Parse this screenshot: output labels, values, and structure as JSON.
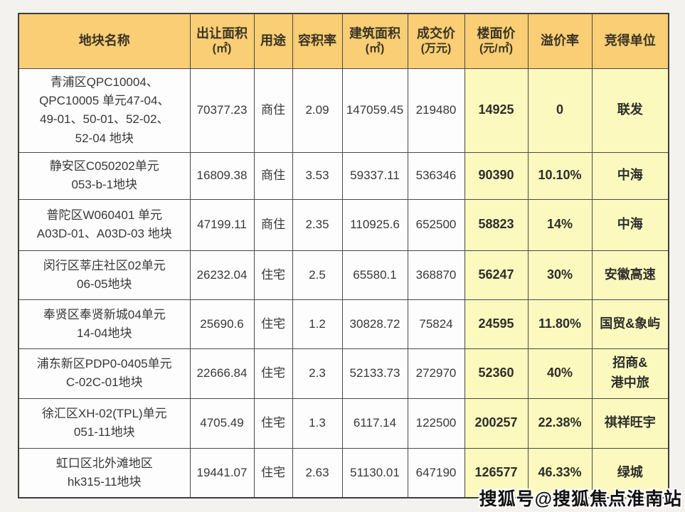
{
  "watermark": "搜狐号@搜狐焦点淮南站",
  "colors": {
    "header_bg": "#f9ce74",
    "highlight_bg": "#fbf9bd",
    "cell_bg": "#fdfdfd",
    "border": "#4a4a4a",
    "page_bg": "#f3f2ee"
  },
  "table": {
    "columns": [
      {
        "title": "地块名称",
        "unit": ""
      },
      {
        "title": "出让面积",
        "unit": "(㎡)"
      },
      {
        "title": "用途",
        "unit": ""
      },
      {
        "title": "容积率",
        "unit": ""
      },
      {
        "title": "建筑面积",
        "unit": "(㎡)"
      },
      {
        "title": "成交价",
        "unit": "(万元)"
      },
      {
        "title": "楼面价",
        "unit": "(元/㎡)"
      },
      {
        "title": "溢价率",
        "unit": ""
      },
      {
        "title": "竞得单位",
        "unit": ""
      }
    ],
    "rows": [
      {
        "name": "青浦区QPC10004、\nQPC10005 单元47-04、\n49-01、50-01、52-02、\n52-04 地块",
        "area": "70377.23",
        "use": "商住",
        "far": "2.09",
        "built_area": "147059.45",
        "price": "219480",
        "floor_price": "14925",
        "premium": "0",
        "winner": "联发"
      },
      {
        "name": "静安区C050202单元\n053-b-1地块",
        "area": "16809.38",
        "use": "商住",
        "far": "3.53",
        "built_area": "59337.11",
        "price": "536346",
        "floor_price": "90390",
        "premium": "10.10%",
        "winner": "中海"
      },
      {
        "name": "普陀区W060401 单元\nA03D-01、A03D-03 地块",
        "area": "47199.11",
        "use": "商住",
        "far": "2.35",
        "built_area": "110925.6",
        "price": "652500",
        "floor_price": "58823",
        "premium": "14%",
        "winner": "中海"
      },
      {
        "name": "闵行区莘庄社区02单元\n06-05地块",
        "area": "26232.04",
        "use": "住宅",
        "far": "2.5",
        "built_area": "65580.1",
        "price": "368870",
        "floor_price": "56247",
        "premium": "30%",
        "winner": "安徽高速"
      },
      {
        "name": "奉贤区奉贤新城04单元\n14-04地块",
        "area": "25690.6",
        "use": "住宅",
        "far": "1.2",
        "built_area": "30828.72",
        "price": "75824",
        "floor_price": "24595",
        "premium": "11.80%",
        "winner": "国贸&象屿"
      },
      {
        "name": "浦东新区PDP0-0405单元\nC-02C-01地块",
        "area": "22666.84",
        "use": "住宅",
        "far": "2.3",
        "built_area": "52133.73",
        "price": "272970",
        "floor_price": "52360",
        "premium": "40%",
        "winner": "招商&\n港中旅"
      },
      {
        "name": "徐汇区XH-02(TPL)单元\n051-11地块",
        "area": "4705.49",
        "use": "住宅",
        "far": "1.3",
        "built_area": "6117.14",
        "price": "122500",
        "floor_price": "200257",
        "premium": "22.38%",
        "winner": "祺祥旺宇"
      },
      {
        "name": "虹口区北外滩地区\nhk315-11地块",
        "area": "19441.07",
        "use": "住宅",
        "far": "2.63",
        "built_area": "51130.01",
        "price": "647190",
        "floor_price": "126577",
        "premium": "46.33%",
        "winner": "绿城"
      }
    ]
  }
}
